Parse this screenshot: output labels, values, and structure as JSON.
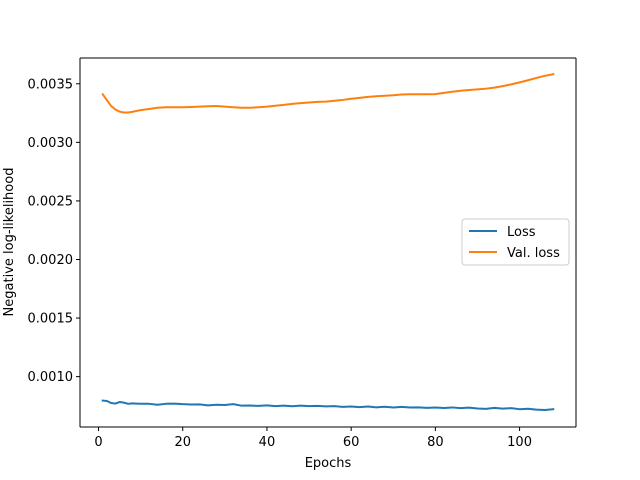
{
  "chart_data": {
    "type": "line",
    "title": "",
    "xlabel": "Epochs",
    "ylabel": "Negative log-likelihood",
    "xlim": [
      -4.4,
      113.4
    ],
    "ylim": [
      0.00057,
      0.00372
    ],
    "xticks": [
      0,
      20,
      40,
      60,
      80,
      100
    ],
    "yticks": [
      0.001,
      0.0015,
      0.002,
      0.0025,
      0.003,
      0.0035
    ],
    "ytick_labels": [
      "0.0010",
      "0.0015",
      "0.0020",
      "0.0025",
      "0.0030",
      "0.0035"
    ],
    "grid": false,
    "legend_position": "center-right",
    "series": [
      {
        "name": "Loss",
        "color": "#1f77b4",
        "x": [
          1,
          2,
          3,
          4,
          5,
          6,
          7,
          8,
          9,
          10,
          12,
          14,
          16,
          18,
          20,
          22,
          24,
          26,
          28,
          30,
          32,
          34,
          36,
          38,
          40,
          42,
          44,
          46,
          48,
          50,
          52,
          54,
          56,
          58,
          60,
          62,
          64,
          66,
          68,
          70,
          72,
          74,
          76,
          78,
          80,
          82,
          84,
          86,
          88,
          90,
          92,
          94,
          96,
          98,
          100,
          102,
          104,
          106,
          108
        ],
        "y": [
          0.000795,
          0.000792,
          0.000775,
          0.00077,
          0.000783,
          0.000778,
          0.000768,
          0.000772,
          0.00077,
          0.000768,
          0.000768,
          0.00076,
          0.000768,
          0.00077,
          0.000765,
          0.000762,
          0.000763,
          0.000755,
          0.00076,
          0.000758,
          0.000765,
          0.000752,
          0.000753,
          0.00075,
          0.000755,
          0.000748,
          0.000752,
          0.000747,
          0.000752,
          0.000748,
          0.00075,
          0.000746,
          0.000748,
          0.000742,
          0.000745,
          0.00074,
          0.000745,
          0.000738,
          0.000743,
          0.000736,
          0.000742,
          0.000737,
          0.000738,
          0.000733,
          0.000737,
          0.000732,
          0.000737,
          0.000731,
          0.000735,
          0.000728,
          0.000725,
          0.000733,
          0.000727,
          0.000731,
          0.000722,
          0.000726,
          0.000718,
          0.000715,
          0.000722
        ]
      },
      {
        "name": "Val. loss",
        "color": "#ff7f0e",
        "x": [
          1,
          2,
          3,
          4,
          5,
          6,
          7,
          8,
          9,
          10,
          12,
          14,
          16,
          18,
          20,
          22,
          24,
          26,
          28,
          30,
          32,
          34,
          36,
          38,
          40,
          42,
          44,
          46,
          48,
          50,
          52,
          54,
          56,
          58,
          60,
          62,
          64,
          66,
          68,
          70,
          72,
          74,
          76,
          78,
          80,
          82,
          84,
          86,
          88,
          90,
          92,
          94,
          96,
          98,
          100,
          102,
          104,
          106,
          108
        ],
        "y": [
          0.00341,
          0.00336,
          0.00331,
          0.00328,
          0.003262,
          0.003255,
          0.003255,
          0.00326,
          0.003268,
          0.003275,
          0.003285,
          0.003295,
          0.0033,
          0.0033,
          0.0033,
          0.003302,
          0.003305,
          0.003308,
          0.00331,
          0.003305,
          0.0033,
          0.003295,
          0.003295,
          0.0033,
          0.003305,
          0.003312,
          0.00332,
          0.003328,
          0.003335,
          0.00334,
          0.003345,
          0.003348,
          0.003355,
          0.003362,
          0.003372,
          0.00338,
          0.003388,
          0.003393,
          0.003398,
          0.003402,
          0.003408,
          0.00341,
          0.00341,
          0.00341,
          0.003412,
          0.003422,
          0.003432,
          0.00344,
          0.003447,
          0.003452,
          0.003458,
          0.003467,
          0.00348,
          0.003495,
          0.003512,
          0.00353,
          0.00355,
          0.003568,
          0.003582
        ]
      }
    ]
  }
}
